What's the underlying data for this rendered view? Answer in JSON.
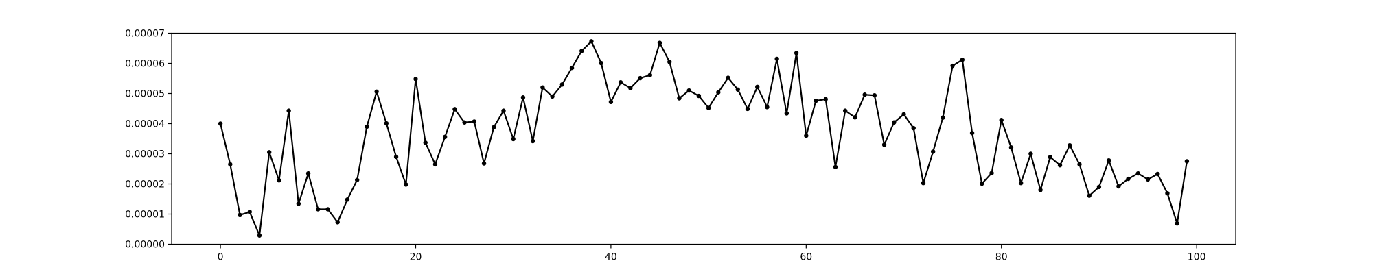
{
  "chart_data": {
    "type": "line",
    "title": "",
    "xlabel": "",
    "ylabel": "",
    "xlim": [
      -5,
      104
    ],
    "ylim": [
      0,
      7e-05
    ],
    "grid": false,
    "xticks": [
      0,
      20,
      40,
      60,
      80,
      100
    ],
    "xtick_labels": [
      "0",
      "20",
      "40",
      "60",
      "80",
      "100"
    ],
    "yticks": [
      0,
      1e-05,
      2e-05,
      3e-05,
      4e-05,
      5e-05,
      6e-05,
      7e-05
    ],
    "ytick_labels": [
      "0.00000",
      "0.00001",
      "0.00002",
      "0.00003",
      "0.00004",
      "0.00005",
      "0.00006",
      "0.00007"
    ],
    "series": [
      {
        "color": "#000000",
        "marker": "dot",
        "x": [
          0,
          1,
          2,
          3,
          4,
          5,
          6,
          7,
          8,
          9,
          10,
          11,
          12,
          13,
          14,
          15,
          16,
          17,
          18,
          19,
          20,
          21,
          22,
          23,
          24,
          25,
          26,
          27,
          28,
          29,
          30,
          31,
          32,
          33,
          34,
          35,
          36,
          37,
          38,
          39,
          40,
          41,
          42,
          43,
          44,
          45,
          46,
          47,
          48,
          49,
          50,
          51,
          52,
          53,
          54,
          55,
          56,
          57,
          58,
          59,
          60,
          61,
          62,
          63,
          64,
          65,
          66,
          67,
          68,
          69,
          70,
          71,
          72,
          73,
          74,
          75,
          76,
          77,
          78,
          79,
          80,
          81,
          82,
          83,
          84,
          85,
          86,
          87,
          88,
          89,
          90,
          91,
          92,
          93,
          94,
          95,
          96,
          97,
          98,
          99
        ],
        "y": [
          4e-05,
          2.65e-05,
          9.7e-06,
          1.07e-05,
          2.9e-06,
          3.05e-05,
          2.12e-05,
          4.43e-05,
          1.34e-05,
          2.35e-05,
          1.16e-05,
          1.16e-05,
          7.3e-06,
          1.48e-05,
          2.13e-05,
          3.9e-05,
          5.06e-05,
          4.01e-05,
          2.9e-05,
          1.98e-05,
          5.48e-05,
          3.37e-05,
          2.65e-05,
          3.56e-05,
          4.48e-05,
          4.04e-05,
          4.07e-05,
          2.68e-05,
          3.88e-05,
          4.43e-05,
          3.49e-05,
          4.87e-05,
          3.42e-05,
          5.2e-05,
          4.9e-05,
          5.3e-05,
          5.85e-05,
          6.41e-05,
          6.73e-05,
          6.01e-05,
          4.72e-05,
          5.37e-05,
          5.18e-05,
          5.51e-05,
          5.61e-05,
          6.68e-05,
          6.05e-05,
          4.84e-05,
          5.1e-05,
          4.92e-05,
          4.52e-05,
          5.04e-05,
          5.52e-05,
          5.13e-05,
          4.49e-05,
          5.22e-05,
          4.55e-05,
          6.15e-05,
          4.34e-05,
          6.34e-05,
          3.6e-05,
          4.76e-05,
          4.81e-05,
          2.56e-05,
          4.43e-05,
          4.21e-05,
          4.96e-05,
          4.94e-05,
          3.3e-05,
          4.04e-05,
          4.31e-05,
          3.85e-05,
          2.03e-05,
          3.07e-05,
          4.2e-05,
          5.92e-05,
          6.12e-05,
          3.69e-05,
          2.01e-05,
          2.36e-05,
          4.12e-05,
          3.21e-05,
          2.03e-05,
          3e-05,
          1.8e-05,
          2.89e-05,
          2.62e-05,
          3.28e-05,
          2.65e-05,
          1.61e-05,
          1.9e-05,
          2.78e-05,
          1.92e-05,
          2.17e-05,
          2.35e-05,
          2.15e-05,
          2.33e-05,
          1.69e-05,
          6.9e-06,
          2.75e-05
        ]
      }
    ]
  }
}
